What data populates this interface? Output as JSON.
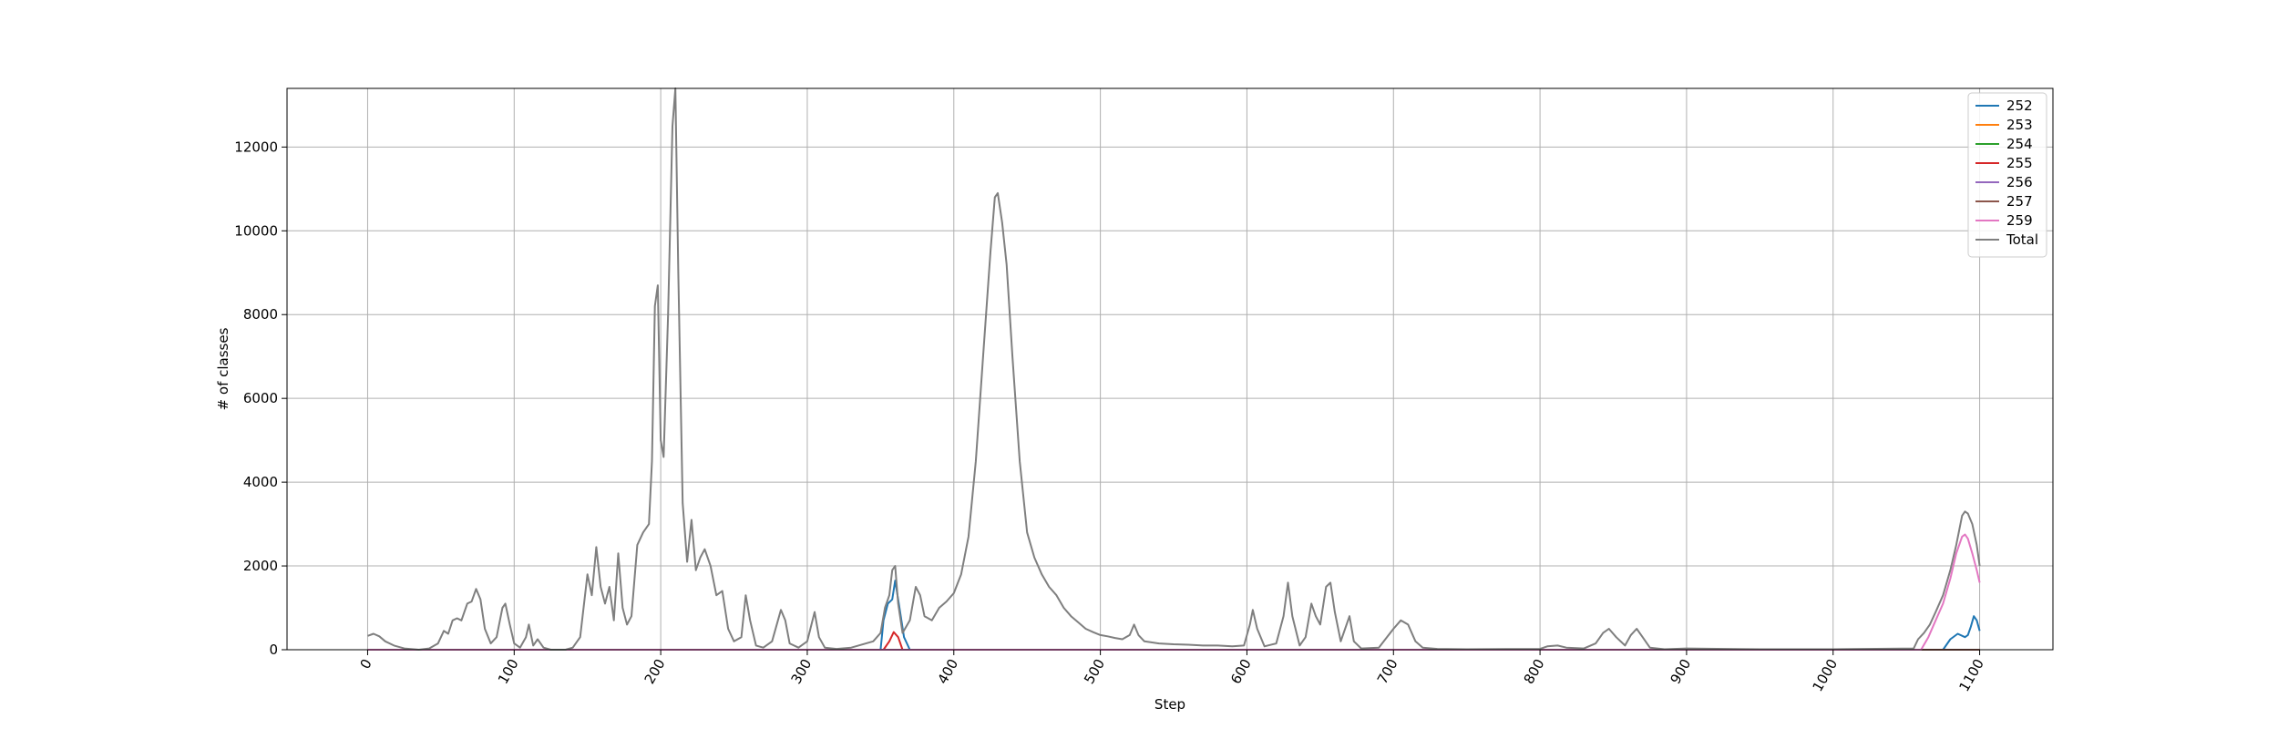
{
  "chart_data": {
    "type": "line",
    "title": "",
    "xlabel": "Step",
    "ylabel": "# of classes",
    "xlim": [
      -55,
      1150
    ],
    "ylim": [
      0,
      13400
    ],
    "x_ticks": [
      0,
      100,
      200,
      300,
      400,
      500,
      600,
      700,
      800,
      900,
      1000,
      1100
    ],
    "y_ticks": [
      0,
      2000,
      4000,
      6000,
      8000,
      10000,
      12000
    ],
    "grid": true,
    "legend_position": "top-right",
    "series": [
      {
        "name": "252",
        "color": "#1f77b4",
        "points": [
          [
            0,
            0
          ],
          [
            350,
            0
          ],
          [
            352,
            700
          ],
          [
            355,
            1100
          ],
          [
            358,
            1200
          ],
          [
            360,
            1650
          ],
          [
            362,
            1200
          ],
          [
            366,
            300
          ],
          [
            370,
            0
          ],
          [
            1075,
            0
          ],
          [
            1080,
            250
          ],
          [
            1085,
            380
          ],
          [
            1090,
            300
          ],
          [
            1092,
            350
          ],
          [
            1094,
            550
          ],
          [
            1096,
            800
          ],
          [
            1098,
            700
          ],
          [
            1100,
            450
          ]
        ]
      },
      {
        "name": "253",
        "color": "#ff7f0e",
        "points": [
          [
            0,
            0
          ],
          [
            1100,
            0
          ]
        ]
      },
      {
        "name": "254",
        "color": "#2ca02c",
        "points": [
          [
            0,
            0
          ],
          [
            1100,
            0
          ]
        ]
      },
      {
        "name": "255",
        "color": "#d62728",
        "points": [
          [
            0,
            0
          ],
          [
            352,
            0
          ],
          [
            356,
            200
          ],
          [
            359,
            420
          ],
          [
            362,
            300
          ],
          [
            365,
            0
          ],
          [
            1100,
            0
          ]
        ]
      },
      {
        "name": "256",
        "color": "#9467bd",
        "points": [
          [
            0,
            0
          ],
          [
            1100,
            0
          ]
        ]
      },
      {
        "name": "257",
        "color": "#8c564b",
        "points": [
          [
            0,
            0
          ],
          [
            1100,
            0
          ]
        ]
      },
      {
        "name": "259",
        "color": "#e377c2",
        "points": [
          [
            0,
            0
          ],
          [
            1060,
            0
          ],
          [
            1065,
            300
          ],
          [
            1070,
            700
          ],
          [
            1075,
            1100
          ],
          [
            1080,
            1700
          ],
          [
            1084,
            2300
          ],
          [
            1088,
            2700
          ],
          [
            1090,
            2750
          ],
          [
            1092,
            2650
          ],
          [
            1095,
            2300
          ],
          [
            1098,
            1900
          ],
          [
            1100,
            1600
          ]
        ]
      },
      {
        "name": "Total",
        "color": "#7f7f7f",
        "points": [
          [
            0,
            330
          ],
          [
            4,
            380
          ],
          [
            8,
            320
          ],
          [
            12,
            200
          ],
          [
            18,
            100
          ],
          [
            25,
            30
          ],
          [
            35,
            0
          ],
          [
            42,
            30
          ],
          [
            48,
            150
          ],
          [
            52,
            450
          ],
          [
            55,
            380
          ],
          [
            58,
            700
          ],
          [
            61,
            750
          ],
          [
            64,
            700
          ],
          [
            68,
            1100
          ],
          [
            71,
            1150
          ],
          [
            74,
            1450
          ],
          [
            77,
            1200
          ],
          [
            80,
            500
          ],
          [
            84,
            150
          ],
          [
            88,
            300
          ],
          [
            92,
            1000
          ],
          [
            94,
            1100
          ],
          [
            97,
            600
          ],
          [
            100,
            150
          ],
          [
            104,
            50
          ],
          [
            108,
            300
          ],
          [
            110,
            600
          ],
          [
            113,
            100
          ],
          [
            116,
            250
          ],
          [
            120,
            50
          ],
          [
            125,
            0
          ],
          [
            135,
            0
          ],
          [
            140,
            50
          ],
          [
            145,
            300
          ],
          [
            150,
            1800
          ],
          [
            153,
            1300
          ],
          [
            156,
            2450
          ],
          [
            159,
            1500
          ],
          [
            162,
            1100
          ],
          [
            165,
            1500
          ],
          [
            168,
            700
          ],
          [
            171,
            2300
          ],
          [
            174,
            1000
          ],
          [
            177,
            600
          ],
          [
            180,
            800
          ],
          [
            184,
            2500
          ],
          [
            188,
            2800
          ],
          [
            192,
            3000
          ],
          [
            194,
            4500
          ],
          [
            196,
            8200
          ],
          [
            198,
            8700
          ],
          [
            200,
            5000
          ],
          [
            202,
            4600
          ],
          [
            205,
            8000
          ],
          [
            208,
            12500
          ],
          [
            210,
            13400
          ],
          [
            212,
            9000
          ],
          [
            215,
            3500
          ],
          [
            218,
            2100
          ],
          [
            221,
            3100
          ],
          [
            224,
            1900
          ],
          [
            227,
            2200
          ],
          [
            230,
            2400
          ],
          [
            234,
            2000
          ],
          [
            238,
            1300
          ],
          [
            242,
            1400
          ],
          [
            246,
            500
          ],
          [
            250,
            200
          ],
          [
            255,
            300
          ],
          [
            258,
            1300
          ],
          [
            261,
            700
          ],
          [
            265,
            100
          ],
          [
            270,
            50
          ],
          [
            276,
            200
          ],
          [
            282,
            950
          ],
          [
            285,
            700
          ],
          [
            288,
            150
          ],
          [
            294,
            50
          ],
          [
            300,
            200
          ],
          [
            305,
            900
          ],
          [
            308,
            300
          ],
          [
            312,
            50
          ],
          [
            320,
            20
          ],
          [
            330,
            50
          ],
          [
            345,
            200
          ],
          [
            350,
            400
          ],
          [
            353,
            1000
          ],
          [
            356,
            1300
          ],
          [
            358,
            1900
          ],
          [
            360,
            2000
          ],
          [
            362,
            1100
          ],
          [
            365,
            400
          ],
          [
            370,
            700
          ],
          [
            374,
            1500
          ],
          [
            377,
            1300
          ],
          [
            380,
            800
          ],
          [
            385,
            700
          ],
          [
            390,
            1000
          ],
          [
            395,
            1150
          ],
          [
            400,
            1350
          ],
          [
            405,
            1800
          ],
          [
            410,
            2700
          ],
          [
            415,
            4500
          ],
          [
            420,
            7000
          ],
          [
            425,
            9500
          ],
          [
            428,
            10800
          ],
          [
            430,
            10900
          ],
          [
            433,
            10200
          ],
          [
            436,
            9200
          ],
          [
            440,
            7000
          ],
          [
            445,
            4500
          ],
          [
            450,
            2800
          ],
          [
            455,
            2200
          ],
          [
            460,
            1800
          ],
          [
            465,
            1500
          ],
          [
            470,
            1300
          ],
          [
            475,
            1000
          ],
          [
            480,
            800
          ],
          [
            485,
            650
          ],
          [
            490,
            500
          ],
          [
            495,
            420
          ],
          [
            500,
            350
          ],
          [
            505,
            320
          ],
          [
            510,
            280
          ],
          [
            515,
            250
          ],
          [
            520,
            350
          ],
          [
            523,
            600
          ],
          [
            526,
            350
          ],
          [
            530,
            200
          ],
          [
            540,
            150
          ],
          [
            550,
            130
          ],
          [
            560,
            120
          ],
          [
            570,
            100
          ],
          [
            580,
            100
          ],
          [
            590,
            80
          ],
          [
            598,
            100
          ],
          [
            602,
            600
          ],
          [
            604,
            950
          ],
          [
            607,
            500
          ],
          [
            612,
            80
          ],
          [
            620,
            150
          ],
          [
            625,
            800
          ],
          [
            628,
            1600
          ],
          [
            631,
            800
          ],
          [
            636,
            100
          ],
          [
            640,
            300
          ],
          [
            644,
            1100
          ],
          [
            647,
            800
          ],
          [
            650,
            600
          ],
          [
            654,
            1500
          ],
          [
            657,
            1600
          ],
          [
            660,
            900
          ],
          [
            664,
            200
          ],
          [
            667,
            500
          ],
          [
            670,
            800
          ],
          [
            673,
            200
          ],
          [
            678,
            30
          ],
          [
            690,
            50
          ],
          [
            700,
            500
          ],
          [
            705,
            700
          ],
          [
            710,
            600
          ],
          [
            715,
            200
          ],
          [
            720,
            50
          ],
          [
            730,
            20
          ],
          [
            750,
            10
          ],
          [
            800,
            20
          ],
          [
            805,
            80
          ],
          [
            812,
            100
          ],
          [
            818,
            50
          ],
          [
            830,
            30
          ],
          [
            838,
            150
          ],
          [
            843,
            400
          ],
          [
            847,
            500
          ],
          [
            852,
            300
          ],
          [
            858,
            100
          ],
          [
            862,
            350
          ],
          [
            866,
            500
          ],
          [
            870,
            300
          ],
          [
            875,
            50
          ],
          [
            885,
            10
          ],
          [
            900,
            30
          ],
          [
            950,
            10
          ],
          [
            1000,
            10
          ],
          [
            1055,
            30
          ],
          [
            1058,
            250
          ],
          [
            1062,
            400
          ],
          [
            1066,
            600
          ],
          [
            1070,
            900
          ],
          [
            1075,
            1300
          ],
          [
            1080,
            1900
          ],
          [
            1084,
            2500
          ],
          [
            1088,
            3200
          ],
          [
            1090,
            3300
          ],
          [
            1092,
            3250
          ],
          [
            1095,
            3000
          ],
          [
            1098,
            2500
          ],
          [
            1100,
            2000
          ]
        ]
      }
    ]
  }
}
